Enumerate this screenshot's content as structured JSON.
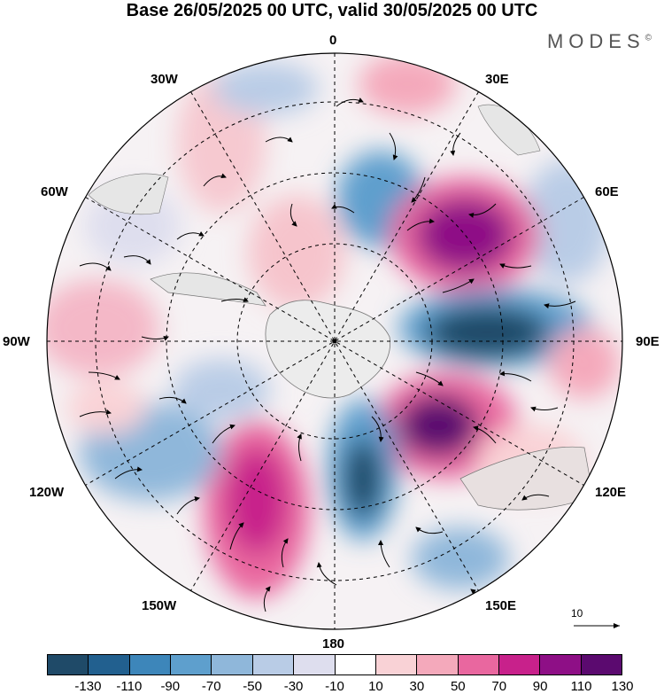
{
  "title": "Base 26/05/2025 00 UTC, valid 30/05/2025 00 UTC",
  "brand": "MODES",
  "brand_mark": "©",
  "map_labels": {
    "top": "0",
    "bottom": "180",
    "left": "90W",
    "right": "90E",
    "ul1": "30W",
    "ul2": "60W",
    "ur1": "30E",
    "ur2": "60E",
    "ll1": "120W",
    "ll2": "150W",
    "lr1": "120E",
    "lr2": "150E"
  },
  "reference_vector": "10",
  "colorbar": {
    "ticks": [
      "-130",
      "-110",
      "-90",
      "-70",
      "-50",
      "-30",
      "-10",
      "10",
      "30",
      "50",
      "70",
      "90",
      "110",
      "130"
    ],
    "colors": [
      "#1f4a68",
      "#22608f",
      "#3d86ba",
      "#5e9fcd",
      "#8fb7da",
      "#b9cce6",
      "#dedeee",
      "#ffffff",
      "#f9d2d6",
      "#f4a9bb",
      "#e9679f",
      "#c8218b",
      "#8e0f86",
      "#5b0a6f"
    ]
  },
  "anomaly_centers": [
    {
      "sign": "negative",
      "level": "-130"
    },
    {
      "sign": "positive",
      "level": "130"
    }
  ]
}
